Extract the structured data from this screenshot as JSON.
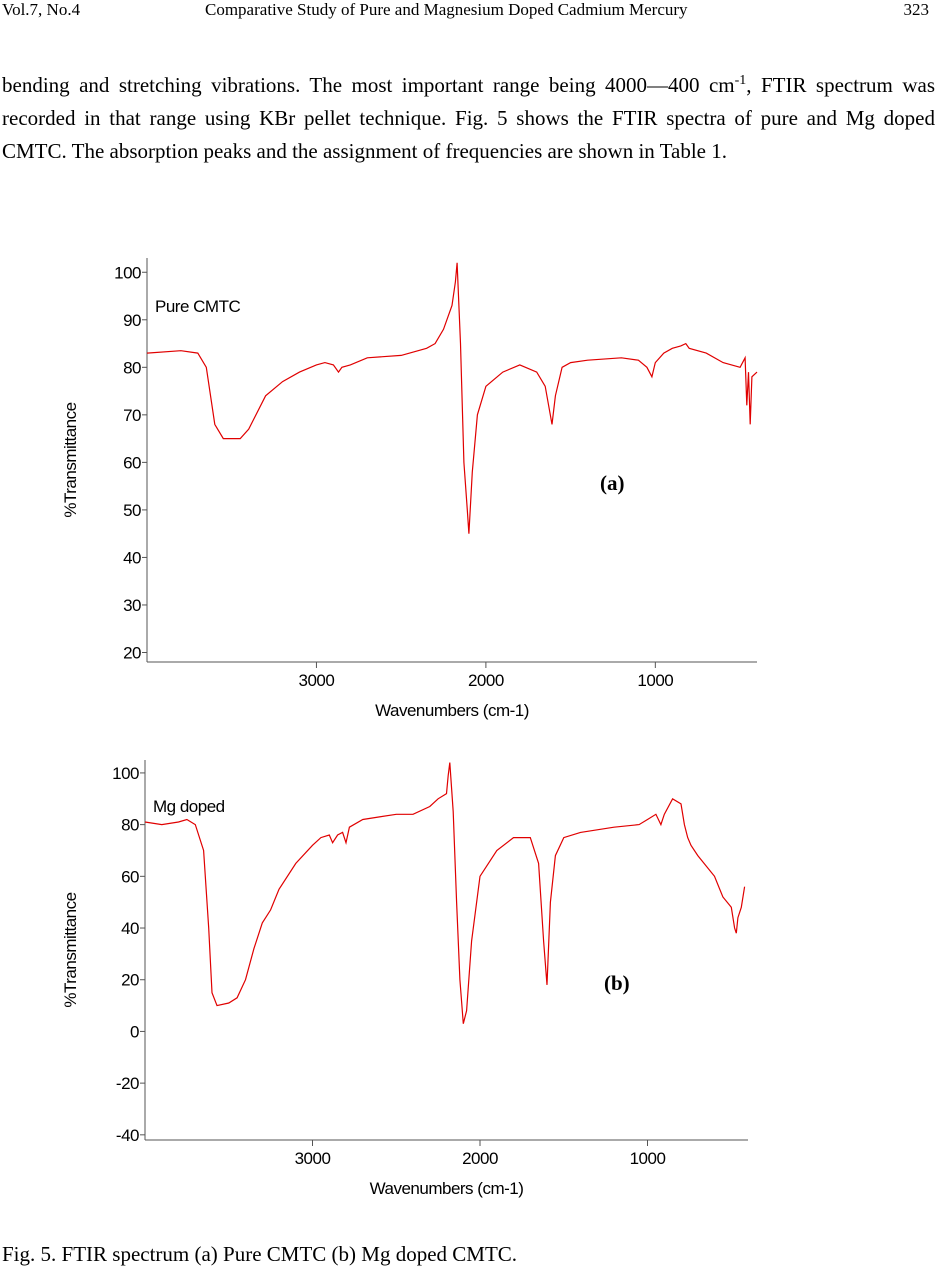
{
  "header": {
    "left": "Vol.7, No.4",
    "title": "Comparative Study of Pure and Magnesium Doped Cadmium Mercury",
    "page": "323"
  },
  "paragraph": {
    "before": "bending and stretching vibrations. The most important range being 4000—400 cm",
    "sup": "-1",
    "after": ", FTIR spectrum was recorded in that range using KBr pellet technique. Fig. 5 shows the FTIR spectra of pure and Mg doped CMTC. The absorption peaks and the assignment of frequencies are shown in Table 1."
  },
  "chart_data": [
    {
      "type": "line",
      "xlabel": "Wavenumbers (cm-1)",
      "ylabel": "%Transmittance",
      "annotation": "(a)",
      "xlim": [
        4000,
        400
      ],
      "xticks": [
        3000,
        2000,
        1000
      ],
      "ylim": [
        18,
        103
      ],
      "yticks": [
        20,
        30,
        40,
        50,
        60,
        70,
        80,
        90,
        100
      ],
      "x": [
        4000,
        3800,
        3700,
        3650,
        3600,
        3550,
        3450,
        3400,
        3300,
        3200,
        3100,
        3000,
        2950,
        2900,
        2870,
        2850,
        2800,
        2700,
        2500,
        2350,
        2300,
        2250,
        2200,
        2180,
        2170,
        2150,
        2130,
        2110,
        2100,
        2080,
        2050,
        2000,
        1900,
        1800,
        1700,
        1650,
        1620,
        1610,
        1590,
        1550,
        1500,
        1400,
        1200,
        1100,
        1050,
        1020,
        1000,
        950,
        900,
        850,
        820,
        800,
        700,
        600,
        500,
        470,
        460,
        450,
        440,
        430,
        400
      ],
      "series": [
        {
          "name": "Pure CMTC",
          "color": "#e00000",
          "values": [
            83,
            83.5,
            83,
            80,
            68,
            65,
            65,
            67,
            74,
            77,
            79,
            80.5,
            81,
            80.5,
            79,
            80,
            80.5,
            82,
            82.5,
            84,
            85,
            88,
            93,
            98,
            102,
            85,
            60,
            50,
            45,
            58,
            70,
            76,
            79,
            80.5,
            79,
            76,
            70,
            68,
            74,
            80,
            81,
            81.5,
            82,
            81.5,
            80,
            78,
            81,
            83,
            84,
            84.5,
            85,
            84,
            83,
            81,
            80,
            82,
            72,
            79,
            68,
            78,
            79
          ]
        }
      ]
    },
    {
      "type": "line",
      "xlabel": "Wavenumbers (cm-1)",
      "ylabel": "%Transmittance",
      "annotation": "(b)",
      "xlim": [
        4000,
        400
      ],
      "xticks": [
        3000,
        2000,
        1000
      ],
      "ylim": [
        -42,
        105
      ],
      "yticks": [
        -40,
        -20,
        0,
        20,
        40,
        60,
        80,
        100
      ],
      "x": [
        4000,
        3900,
        3800,
        3750,
        3700,
        3650,
        3620,
        3600,
        3570,
        3500,
        3450,
        3400,
        3350,
        3300,
        3250,
        3200,
        3100,
        3000,
        2950,
        2900,
        2880,
        2850,
        2820,
        2800,
        2780,
        2700,
        2600,
        2500,
        2400,
        2300,
        2250,
        2200,
        2190,
        2180,
        2160,
        2140,
        2120,
        2100,
        2080,
        2050,
        2000,
        1900,
        1800,
        1700,
        1650,
        1620,
        1600,
        1580,
        1550,
        1500,
        1400,
        1200,
        1050,
        1000,
        950,
        920,
        900,
        850,
        800,
        780,
        760,
        740,
        700,
        600,
        550,
        500,
        480,
        470,
        460,
        440,
        420
      ],
      "series": [
        {
          "name": "Mg doped",
          "color": "#e00000",
          "values": [
            81,
            80,
            81,
            82,
            80,
            70,
            40,
            15,
            10,
            11,
            13,
            20,
            32,
            42,
            47,
            55,
            65,
            72,
            75,
            76,
            73,
            76,
            77,
            73,
            79,
            82,
            83,
            84,
            84,
            87,
            90,
            92,
            99,
            104,
            85,
            50,
            20,
            3,
            8,
            35,
            60,
            70,
            75,
            75,
            65,
            35,
            18,
            50,
            68,
            75,
            77,
            79,
            80,
            82,
            84,
            80,
            84,
            90,
            88,
            80,
            75,
            72,
            68,
            60,
            52,
            48,
            40,
            38,
            44,
            48,
            56
          ]
        }
      ]
    }
  ],
  "caption": "Fig. 5. FTIR spectrum (a) Pure CMTC (b) Mg doped CMTC."
}
